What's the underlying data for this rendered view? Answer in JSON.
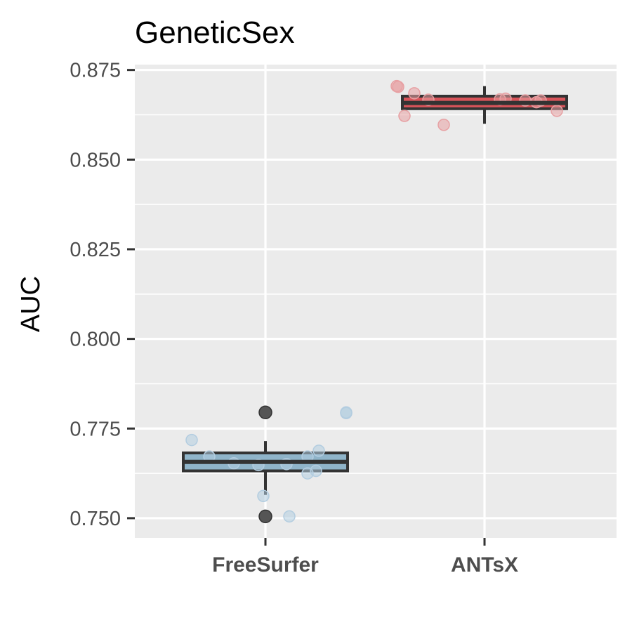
{
  "chart_data": {
    "type": "box",
    "title": "GeneticSex",
    "xlabel": "",
    "ylabel": "AUC",
    "categories": [
      "FreeSurfer",
      "ANTsX"
    ],
    "ylim": [
      0.7445,
      0.8765
    ],
    "yticks": [
      0.75,
      0.775,
      0.8,
      0.825,
      0.85,
      0.875
    ],
    "ytick_labels": [
      "0.750",
      "0.775",
      "0.800",
      "0.825",
      "0.850",
      "0.875"
    ],
    "grid": true,
    "legend": "none",
    "colors": {
      "FreeSurfer": "#8fb4c9",
      "ANTsX": "#d9545a",
      "panel": "#ebebeb",
      "grid": "#ffffff",
      "box_outline": "#333333",
      "outlier": "#555555"
    },
    "boxes": [
      {
        "category": "FreeSurfer",
        "whisker_low": 0.7565,
        "q1": 0.7632,
        "median": 0.7657,
        "q3": 0.7682,
        "whisker_high": 0.7715,
        "outliers": [
          0.7795,
          0.7505
        ],
        "points": [
          0.7718,
          0.7672,
          0.7653,
          0.7648,
          0.7651,
          0.7672,
          0.7625,
          0.7632,
          0.7688,
          0.7795,
          0.7562,
          0.7505,
          0.7793,
          0.7505
        ]
      },
      {
        "category": "ANTsX",
        "whisker_low": 0.86,
        "q1": 0.8642,
        "median": 0.8658,
        "q3": 0.8677,
        "whisker_high": 0.8705,
        "outliers": [],
        "points": [
          0.8705,
          0.8703,
          0.8685,
          0.8622,
          0.8667,
          0.8597,
          0.8668,
          0.8665,
          0.866,
          0.8636,
          0.8665,
          0.867
        ]
      }
    ]
  }
}
